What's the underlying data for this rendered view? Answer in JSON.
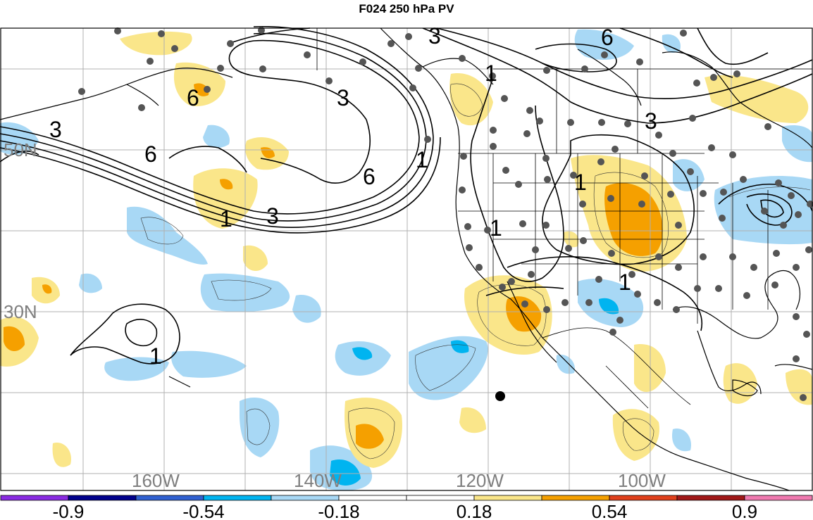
{
  "title": "F024 250 hPa PV",
  "lat_labels": [
    "50N",
    "30N"
  ],
  "lon_labels": [
    "160W",
    "140W",
    "120W",
    "100W"
  ],
  "colorbar": {
    "colors": [
      "#8a2be2",
      "#00008b",
      "#3060d0",
      "#00b4f0",
      "#a8d8f5",
      "#ffffff",
      "#ffffff",
      "#fae68a",
      "#f5a000",
      "#e0401c",
      "#a01818",
      "#f07ab0"
    ],
    "labels": [
      "-0.9",
      "-0.54",
      "-0.18",
      "0.18",
      "0.54",
      "0.9"
    ]
  },
  "contour_labels": [
    "3",
    "6",
    "3",
    "6",
    "6",
    "3",
    "1",
    "6",
    "3",
    "1",
    "1",
    "1",
    "1",
    "3",
    "1",
    "1"
  ],
  "colors": {
    "positive_light": "#fae68a",
    "positive_mid": "#f5a000",
    "negative_light": "#a8d8f5",
    "negative_mid": "#00b4f0",
    "contour": "#000000",
    "grid": "#b0b0b0",
    "station": "#555555"
  }
}
